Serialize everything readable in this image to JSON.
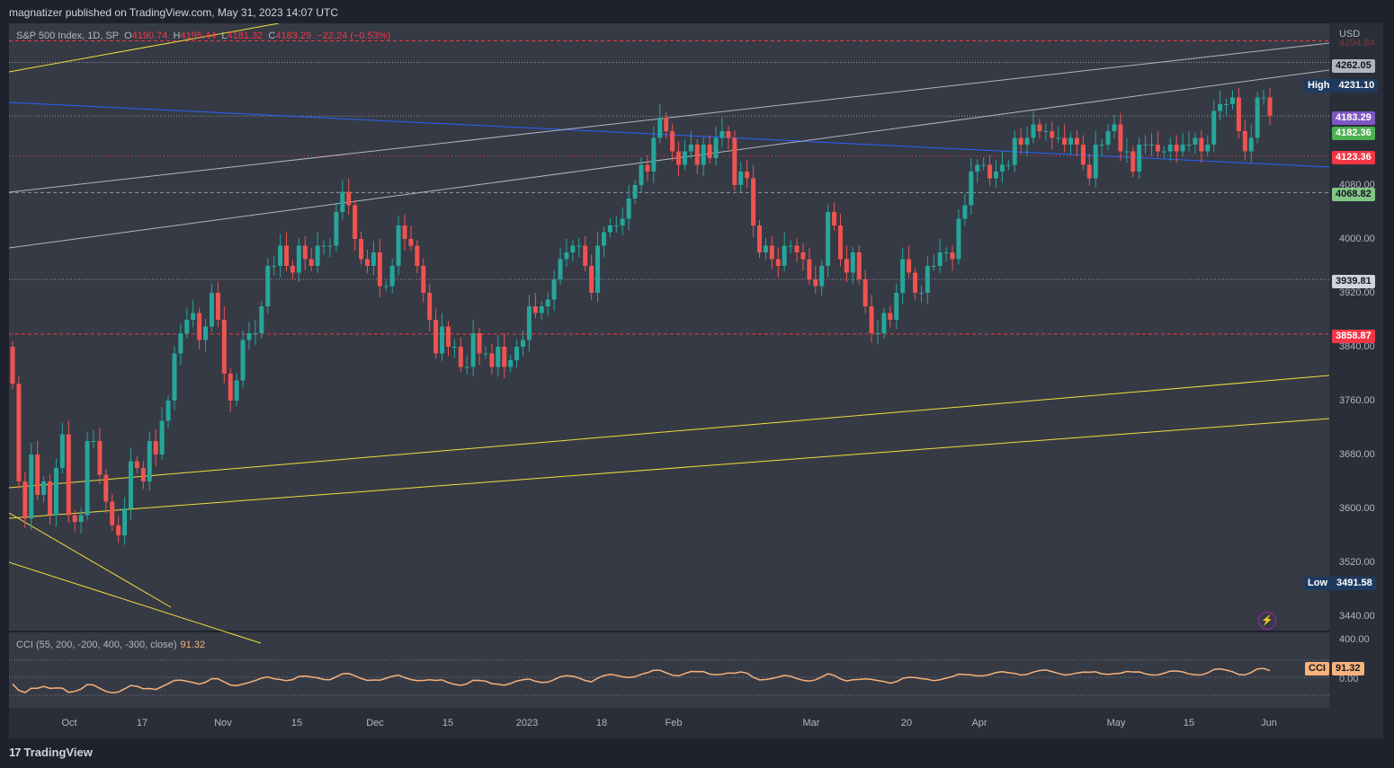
{
  "header": {
    "published": "magnatizer published on TradingView.com, May 31, 2023 14:07 UTC"
  },
  "legend": {
    "symbol": "S&P 500 Index, 1D, SP",
    "o_label": "O",
    "o": "4190.74",
    "h_label": "H",
    "h": "4195.44",
    "l_label": "L",
    "l": "4181.32",
    "c_label": "C",
    "c": "4183.29",
    "change": "−22.24 (−0.53%)"
  },
  "cci": {
    "label": "CCI (55, 200, -200, 400, -300, close)",
    "value": "91.32",
    "tag_label": "CCI",
    "tag_value": "91.32",
    "axis_top": "400.00",
    "axis_mid": "0.00"
  },
  "axis": {
    "currency": "USD",
    "ticks": [
      "4000.00",
      "3920.00",
      "3840.00",
      "3760.00",
      "3680.00",
      "3600.00",
      "3520.00",
      "3440.00"
    ],
    "partial_top": "4294.84",
    "partial_4080": "4080.00"
  },
  "price_tags": [
    {
      "value": "4262.05",
      "bg": "#b2b5be",
      "fg": "#131722"
    },
    {
      "value": "4231.10",
      "bg": "#1e3a5f",
      "fg": "#ffffff",
      "prefix": "High"
    },
    {
      "value": "4183.29",
      "bg": "#7e57c2",
      "fg": "#ffffff"
    },
    {
      "value": "4182.36",
      "bg": "#4caf50",
      "fg": "#ffffff"
    },
    {
      "value": "4123.36",
      "bg": "#f23645",
      "fg": "#ffffff"
    },
    {
      "value": "4068.82",
      "bg": "#81c784",
      "fg": "#131722"
    },
    {
      "value": "3939.81",
      "bg": "#d1d4dc",
      "fg": "#131722"
    },
    {
      "value": "3858.87",
      "bg": "#f23645",
      "fg": "#ffffff"
    },
    {
      "value": "3491.58",
      "bg": "#1e3a5f",
      "fg": "#ffffff",
      "prefix": "Low"
    }
  ],
  "months": [
    "Oct",
    "17",
    "Nov",
    "15",
    "Dec",
    "15",
    "2023",
    "18",
    "Feb",
    "Mar",
    "20",
    "Apr",
    "May",
    "15",
    "Jun"
  ],
  "colors": {
    "up": "#26a69a",
    "down": "#ef5350",
    "cci": "#f7b27a",
    "yellow": "#f2dd3c",
    "blue": "#2962ff",
    "white_line": "#b2b5be"
  },
  "footer": {
    "brand": "TradingView",
    "brand_glyph": "17"
  },
  "chart_data": {
    "type": "candlestick",
    "symbol": "S&P 500 Index",
    "interval": "1D",
    "ylim": [
      3400,
      4300
    ],
    "closes": [
      3785,
      3640,
      3585,
      3680,
      3620,
      3640,
      3590,
      3660,
      3710,
      3590,
      3580,
      3590,
      3700,
      3700,
      3650,
      3610,
      3575,
      3560,
      3600,
      3670,
      3660,
      3640,
      3700,
      3680,
      3730,
      3760,
      3830,
      3860,
      3880,
      3890,
      3850,
      3870,
      3920,
      3880,
      3800,
      3760,
      3790,
      3850,
      3860,
      3860,
      3900,
      3960,
      3960,
      3990,
      3960,
      3950,
      3990,
      3970,
      3960,
      3990,
      3990,
      3990,
      4040,
      4070,
      4050,
      4000,
      3970,
      3960,
      3980,
      3930,
      3930,
      3960,
      4020,
      4000,
      3990,
      3960,
      3920,
      3880,
      3830,
      3870,
      3840,
      3840,
      3810,
      3810,
      3860,
      3830,
      3830,
      3810,
      3840,
      3810,
      3820,
      3840,
      3850,
      3900,
      3890,
      3900,
      3910,
      3940,
      3970,
      3980,
      3990,
      3990,
      3960,
      3920,
      3990,
      4010,
      4020,
      4020,
      4030,
      4060,
      4080,
      4110,
      4100,
      4150,
      4180,
      4160,
      4130,
      4110,
      4130,
      4140,
      4110,
      4140,
      4120,
      4150,
      4160,
      4150,
      4080,
      4100,
      4090,
      4020,
      3980,
      3990,
      3970,
      3960,
      3990,
      3990,
      3980,
      3970,
      3940,
      3930,
      3960,
      4040,
      4020,
      3970,
      3950,
      3980,
      3940,
      3900,
      3860,
      3860,
      3890,
      3880,
      3920,
      3970,
      3950,
      3920,
      3920,
      3960,
      3960,
      3980,
      3980,
      3970,
      4030,
      4050,
      4100,
      4110,
      4110,
      4090,
      4100,
      4110,
      4110,
      4150,
      4140,
      4150,
      4170,
      4160,
      4160,
      4150,
      4150,
      4140,
      4150,
      4140,
      4110,
      4090,
      4140,
      4140,
      4160,
      4170,
      4130,
      4130,
      4100,
      4140,
      4140,
      4140,
      4130,
      4130,
      4140,
      4130,
      4140,
      4140,
      4150,
      4130,
      4140,
      4190,
      4200,
      4200,
      4210,
      4160,
      4130,
      4150,
      4210,
      4210,
      4183
    ],
    "annotations": {
      "high": 4231.1,
      "low": 3491.58,
      "last": 4183.29
    },
    "price_levels": [
      4262.05,
      4231.1,
      4183.29,
      4182.36,
      4123.36,
      4068.82,
      3939.81,
      3858.87,
      3491.58
    ],
    "x_labels": [
      "Oct",
      "17",
      "Nov",
      "15",
      "Dec",
      "15",
      "2023",
      "18",
      "Feb",
      "Mar",
      "20",
      "Apr",
      "May",
      "15",
      "Jun"
    ],
    "indicator": {
      "name": "CCI (55, 200, -200, 400, -300, close)",
      "last": 91.32
    }
  }
}
